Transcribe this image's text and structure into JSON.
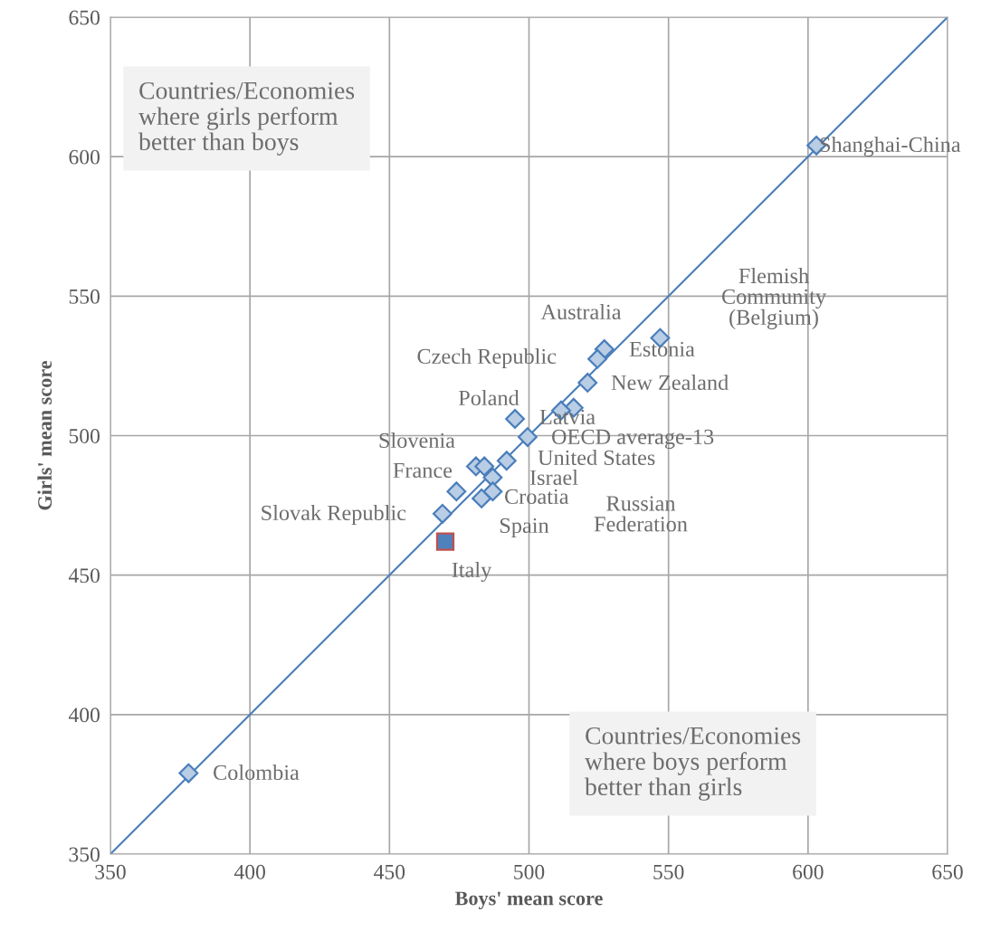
{
  "chart_data": {
    "type": "scatter",
    "xlabel": "Boys' mean score",
    "ylabel": "Girls' mean score",
    "xlim": [
      350,
      650
    ],
    "ylim": [
      350,
      650
    ],
    "xticks": [
      350,
      400,
      450,
      500,
      550,
      600,
      650
    ],
    "yticks": [
      350,
      400,
      450,
      500,
      550,
      600,
      650
    ],
    "grid": true,
    "legend": false,
    "series": [
      {
        "type": "line",
        "color": "#4a7ebb",
        "marker": "none",
        "line_style": "solid",
        "x": [
          350,
          650
        ],
        "values": [
          350,
          650
        ]
      },
      {
        "color": "#b9cde5",
        "marker": "diamond",
        "x": [
          603,
          547,
          527,
          524.5,
          521,
          516,
          511.5,
          495,
          499.5,
          492,
          481,
          484,
          487,
          487,
          483,
          474,
          469,
          378
        ],
        "values": [
          604,
          535,
          531,
          527.5,
          519,
          510,
          509,
          506,
          499.5,
          491,
          489,
          489,
          485,
          480,
          477.5,
          480,
          472,
          379
        ]
      },
      {
        "color": "#4f81bd",
        "marker": "square",
        "x": [
          470
        ],
        "values": [
          462
        ]
      }
    ],
    "annotations": [
      "Countries/Economies\nwhere girls perform\nbetter than boys",
      "Countries/Economies\nwhere boys perform\nbetter than girls",
      "Shanghai-China",
      "Flemish\nCommunity\n(Belgium)",
      "Estonia",
      "Australia",
      "New Zealand",
      "Czech Republic",
      "Poland",
      "Latvia",
      "OECD average-13",
      "United States",
      "Slovenia",
      "France",
      "Russian\nFederation",
      "Spain",
      "Israel",
      "Croatia",
      "Slovak Republic",
      "Italy",
      "Colombia"
    ]
  }
}
